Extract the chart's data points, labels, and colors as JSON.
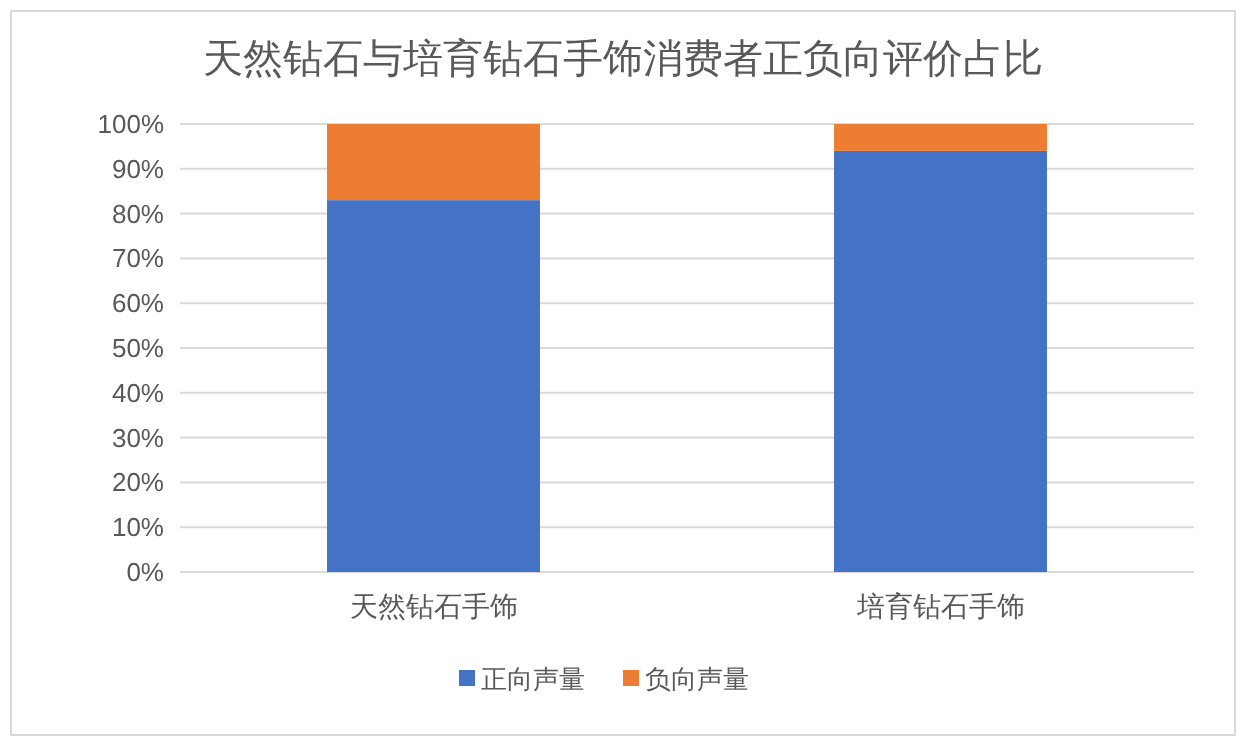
{
  "chart_data": {
    "type": "bar",
    "title": "天然钻石与培育钻石手饰消费者正负向评价占比",
    "categories": [
      "天然钻石手饰",
      "培育钻石手饰"
    ],
    "stacked": true,
    "series": [
      {
        "name": "正向声量",
        "color": "#4472c4",
        "values": [
          83,
          94
        ]
      },
      {
        "name": "负向声量",
        "color": "#ed7d31",
        "values": [
          17,
          6
        ]
      }
    ],
    "ylim": [
      0,
      100
    ],
    "yticks": [
      {
        "value": 0,
        "label": "0%"
      },
      {
        "value": 10,
        "label": "10%"
      },
      {
        "value": 20,
        "label": "20%"
      },
      {
        "value": 30,
        "label": "30%"
      },
      {
        "value": 40,
        "label": "40%"
      },
      {
        "value": 50,
        "label": "50%"
      },
      {
        "value": 60,
        "label": "60%"
      },
      {
        "value": 70,
        "label": "70%"
      },
      {
        "value": 80,
        "label": "80%"
      },
      {
        "value": 90,
        "label": "90%"
      },
      {
        "value": 100,
        "label": "100%"
      }
    ],
    "grid": "y",
    "legend": "bottom"
  }
}
